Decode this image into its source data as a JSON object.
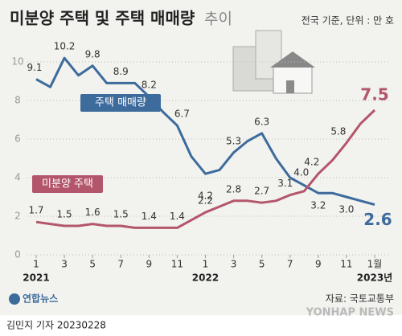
{
  "chart_data": {
    "type": "line",
    "title": "미분양 주택 및 주택 매매량",
    "title_suffix": "추이",
    "note": "전국 기준, 단위 : 만 호",
    "categories": [
      "1",
      null,
      "3",
      null,
      "5",
      null,
      "7",
      null,
      "9",
      null,
      "11",
      null,
      "1",
      null,
      "3",
      null,
      "5",
      null,
      "7",
      null,
      "9",
      null,
      "11",
      null,
      "1월"
    ],
    "x_group_labels": [
      "2021",
      "2022",
      "2023년"
    ],
    "series": [
      {
        "name": "주택 매매량",
        "color": "#3d6b9c",
        "values": [
          9.1,
          8.7,
          10.2,
          9.3,
          9.8,
          8.9,
          8.9,
          8.9,
          8.2,
          7.4,
          6.7,
          5.1,
          4.2,
          4.4,
          5.3,
          5.9,
          6.3,
          5.0,
          4.0,
          3.6,
          3.2,
          3.2,
          3.0,
          2.8,
          2.6
        ],
        "value_labels": [
          "9.1",
          null,
          "10.2",
          null,
          "9.8",
          null,
          "8.9",
          null,
          "8.2",
          null,
          "6.7",
          null,
          "4.2",
          null,
          "5.3",
          null,
          "6.3",
          null,
          "4.0",
          null,
          "3.2",
          null,
          "3.0",
          null,
          "2.6"
        ]
      },
      {
        "name": "미분양 주택",
        "color": "#b4566b",
        "values": [
          1.7,
          1.6,
          1.5,
          1.5,
          1.6,
          1.5,
          1.5,
          1.4,
          1.4,
          1.4,
          1.4,
          1.8,
          2.2,
          2.5,
          2.8,
          2.8,
          2.7,
          2.8,
          3.1,
          3.3,
          4.2,
          4.9,
          5.8,
          6.8,
          7.5
        ],
        "value_labels": [
          "1.7",
          null,
          "1.5",
          null,
          "1.6",
          null,
          "1.5",
          null,
          "1.4",
          null,
          "1.4",
          null,
          "2.2",
          null,
          "2.8",
          null,
          "2.7",
          null,
          "3.1",
          null,
          "4.2",
          null,
          "5.8",
          null,
          "7.5"
        ]
      }
    ],
    "ylim": [
      0,
      11
    ],
    "yticks": [
      0,
      2,
      4,
      6,
      8,
      10
    ],
    "grid": true,
    "source": "자료: 국토교통부",
    "logo": "연합뉴스",
    "watermark": "YONHAP NEWS",
    "byline": "김민지 기자  20230228"
  }
}
